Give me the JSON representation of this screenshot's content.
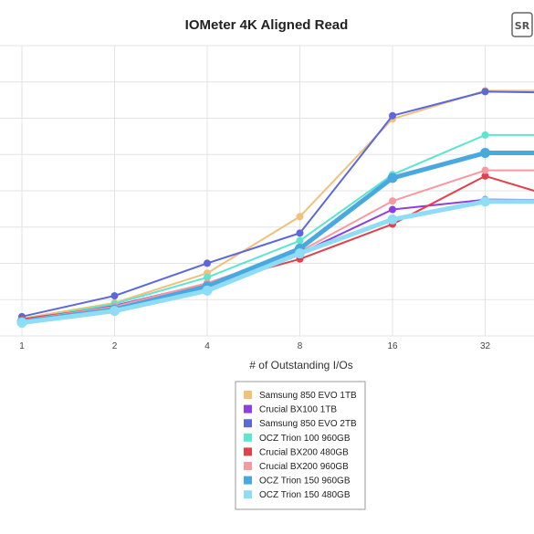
{
  "chart_data": {
    "type": "line",
    "title": "IOMeter 4K Aligned Read",
    "xlabel": "# of Outstanding I/Os",
    "ylabel": "",
    "x": [
      1,
      2,
      4,
      8,
      16,
      32,
      64
    ],
    "x_tick_labels": [
      "1",
      "2",
      "4",
      "8",
      "16",
      "32"
    ],
    "x_scale": "log2",
    "y_tick_labels": [],
    "grid": true,
    "legend": "bottom-center",
    "series": [
      {
        "name": "Samsung 850 EVO 1TB",
        "color": "#f0c07c",
        "values": [
          3.7,
          7.0,
          13.3,
          25.3,
          46.0,
          52.0,
          52.0
        ]
      },
      {
        "name": "Crucial BX100 1TB",
        "color": "#8d3fe0",
        "values": [
          3.5,
          6.4,
          11.1,
          17.5,
          26.8,
          28.9,
          28.8
        ]
      },
      {
        "name": "Samsung 850 EVO 2TB",
        "color": "#5c67dc",
        "values": [
          4.1,
          8.5,
          15.4,
          21.8,
          46.7,
          51.8,
          51.5
        ]
      },
      {
        "name": "OCZ Trion 100 960GB",
        "color": "#5ce6cf",
        "values": [
          3.3,
          6.8,
          12.4,
          20.2,
          34.2,
          42.6,
          42.6
        ]
      },
      {
        "name": "Crucial BX200 480GB",
        "color": "#e0414a",
        "values": [
          3.5,
          6.2,
          10.9,
          16.3,
          23.7,
          33.9,
          28.0
        ]
      },
      {
        "name": "Crucial BX200 960GB",
        "color": "#f59aa0",
        "values": [
          3.3,
          6.2,
          11.2,
          17.9,
          28.6,
          35.1,
          35.1
        ]
      },
      {
        "name": "OCZ Trion 150 960GB",
        "color": "#4aa8e0",
        "values": [
          3.0,
          5.6,
          10.5,
          18.5,
          33.5,
          38.8,
          38.8
        ]
      },
      {
        "name": "OCZ Trion 150 480GB",
        "color": "#8fdcf5",
        "values": [
          2.8,
          5.3,
          9.6,
          17.5,
          24.7,
          28.5,
          28.5
        ]
      }
    ],
    "ylim": [
      0,
      60
    ]
  },
  "logo": {
    "text": "SR"
  }
}
